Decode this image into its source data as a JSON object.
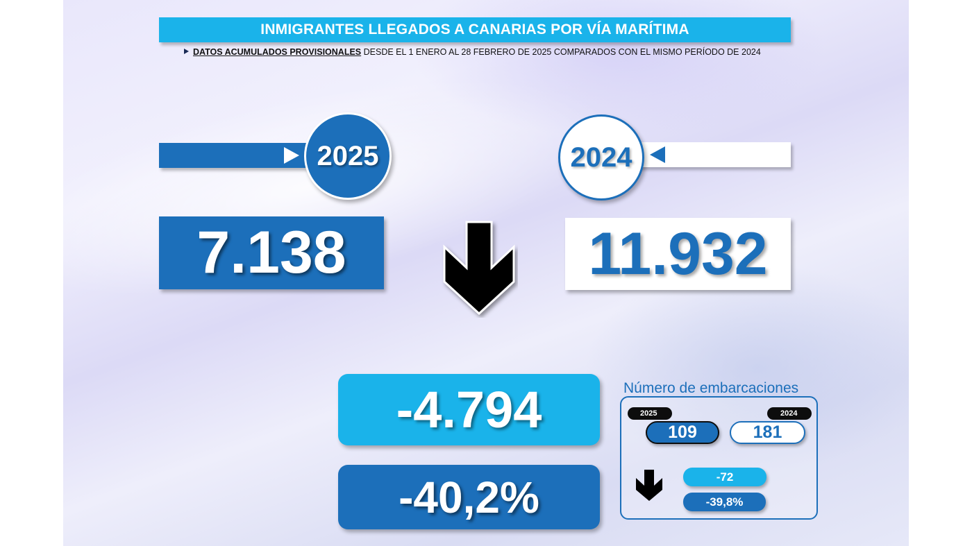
{
  "header": {
    "title": "INMIGRANTES LLEGADOS A CANARIAS POR VÍA MARÍTIMA",
    "subtitle_bold": "DATOS ACUMULADOS PROVISIONALES",
    "subtitle_rest": " DESDE EL 1 ENERO AL 28 FEBRERO DE 2025 COMPARADOS CON EL MISMO PERÍODO DE 2024"
  },
  "current": {
    "year": "2025",
    "value": "7.138"
  },
  "previous": {
    "year": "2024",
    "value": "11.932"
  },
  "difference": {
    "absolute": "-4.794",
    "percent": "-40,2%",
    "trend_icon": "arrow-down-icon"
  },
  "boats": {
    "title": "Número de embarcaciones",
    "current_year": "2025",
    "current_value": "109",
    "previous_year": "2024",
    "previous_value": "181",
    "diff_absolute": "-72",
    "diff_percent": "-39,8%",
    "trend_icon": "arrow-down-icon"
  },
  "colors": {
    "dark_blue": "#1c6fba",
    "light_blue": "#1ab3ea",
    "white": "#ffffff",
    "black": "#0d0d0d"
  }
}
